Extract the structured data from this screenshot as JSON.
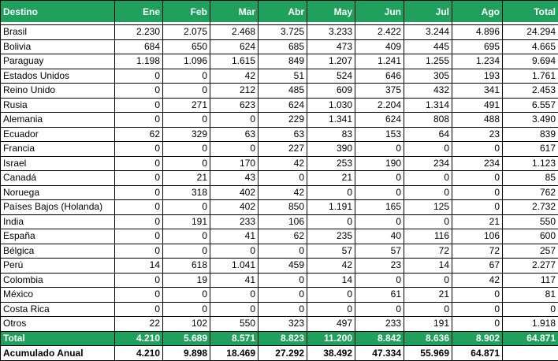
{
  "colors": {
    "header_bg": "#1FA05C",
    "header_text": "#FFFFFF",
    "grid_line": "#000000",
    "total_row_bg": "#1FA05C",
    "total_row_text": "#FFFFFF",
    "body_bg": "#FFFFFF",
    "body_text": "#000000"
  },
  "chart_data": {
    "type": "table",
    "columns": [
      "Destino",
      "Ene",
      "Feb",
      "Mar",
      "Abr",
      "May",
      "Jun",
      "Jul",
      "Ago",
      "Total"
    ],
    "rows": [
      {
        "label": "Brasil",
        "values": [
          "2.230",
          "2.075",
          "2.468",
          "3.725",
          "3.233",
          "2.422",
          "3.244",
          "4.896"
        ],
        "total": "24.294"
      },
      {
        "label": "Bolivia",
        "values": [
          "684",
          "650",
          "624",
          "685",
          "473",
          "409",
          "445",
          "695"
        ],
        "total": "4.665"
      },
      {
        "label": "Paraguay",
        "values": [
          "1.198",
          "1.096",
          "1.615",
          "849",
          "1.207",
          "1.241",
          "1.255",
          "1.234"
        ],
        "total": "9.694"
      },
      {
        "label": "Estados Unidos",
        "values": [
          "0",
          "0",
          "42",
          "51",
          "524",
          "646",
          "305",
          "193"
        ],
        "total": "1.761"
      },
      {
        "label": "Reino Unido",
        "values": [
          "0",
          "0",
          "212",
          "485",
          "609",
          "375",
          "432",
          "341"
        ],
        "total": "2.453"
      },
      {
        "label": "Rusia",
        "values": [
          "0",
          "271",
          "623",
          "624",
          "1.030",
          "2.204",
          "1.314",
          "491"
        ],
        "total": "6.557"
      },
      {
        "label": "Alemania",
        "values": [
          "0",
          "0",
          "0",
          "229",
          "1.341",
          "624",
          "808",
          "488"
        ],
        "total": "3.490"
      },
      {
        "label": "Ecuador",
        "values": [
          "62",
          "329",
          "63",
          "63",
          "83",
          "153",
          "64",
          "23"
        ],
        "total": "839"
      },
      {
        "label": "Francia",
        "values": [
          "0",
          "0",
          "0",
          "227",
          "390",
          "0",
          "0",
          "0"
        ],
        "total": "617"
      },
      {
        "label": "Israel",
        "values": [
          "0",
          "0",
          "170",
          "42",
          "253",
          "190",
          "234",
          "234"
        ],
        "total": "1.123"
      },
      {
        "label": "Canadá",
        "values": [
          "0",
          "21",
          "43",
          "0",
          "21",
          "0",
          "0",
          "0"
        ],
        "total": "85"
      },
      {
        "label": "Noruega",
        "values": [
          "0",
          "318",
          "402",
          "42",
          "0",
          "0",
          "0",
          "0"
        ],
        "total": "762"
      },
      {
        "label": "Países Bajos (Holanda)",
        "values": [
          "0",
          "0",
          "402",
          "850",
          "1.191",
          "165",
          "125",
          "0"
        ],
        "total": "2.732"
      },
      {
        "label": "India",
        "values": [
          "0",
          "191",
          "233",
          "106",
          "0",
          "0",
          "0",
          "21"
        ],
        "total": "550"
      },
      {
        "label": "España",
        "values": [
          "0",
          "0",
          "41",
          "62",
          "235",
          "40",
          "116",
          "106"
        ],
        "total": "600"
      },
      {
        "label": "Bélgica",
        "values": [
          "0",
          "0",
          "0",
          "0",
          "57",
          "57",
          "72",
          "72"
        ],
        "total": "257"
      },
      {
        "label": "Perú",
        "values": [
          "14",
          "618",
          "1.041",
          "459",
          "42",
          "23",
          "14",
          "67"
        ],
        "total": "2.277"
      },
      {
        "label": "Colombia",
        "values": [
          "0",
          "19",
          "41",
          "0",
          "14",
          "0",
          "0",
          "42"
        ],
        "total": "117"
      },
      {
        "label": "México",
        "values": [
          "0",
          "0",
          "0",
          "0",
          "0",
          "61",
          "21",
          "0"
        ],
        "total": "81"
      },
      {
        "label": "Costa Rica",
        "values": [
          "0",
          "0",
          "0",
          "0",
          "0",
          "0",
          "0",
          "0"
        ],
        "total": "0"
      },
      {
        "label": "Otros",
        "values": [
          "22",
          "102",
          "550",
          "323",
          "497",
          "233",
          "191",
          "0"
        ],
        "total": "1.918"
      }
    ],
    "total_row": {
      "label": "Total",
      "values": [
        "4.210",
        "5.689",
        "8.571",
        "8.823",
        "11.200",
        "8.842",
        "8.636",
        "8.902"
      ],
      "total": "64.871"
    },
    "acumulado_row": {
      "label": "Acumulado Anual",
      "values": [
        "4.210",
        "9.898",
        "18.469",
        "27.292",
        "38.492",
        "47.334",
        "55.969",
        "64.871"
      ],
      "total": ""
    }
  }
}
